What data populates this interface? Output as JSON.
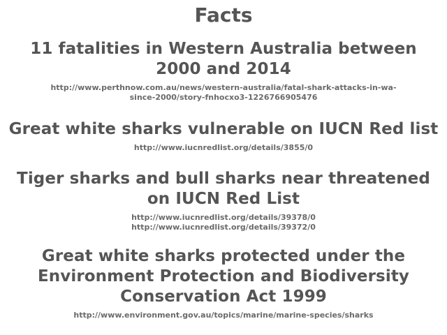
{
  "title": "Facts",
  "facts": [
    {
      "text_lines": [
        "11 fatalities in Western Australia between",
        "2000 and 2014"
      ],
      "sources": [
        "http://www.perthnow.com.au/news/western-australia/fatal-shark-attacks-in-wa-",
        "since-2000/story-fnhocxo3-1226766905476"
      ]
    },
    {
      "text_lines": [
        "Great white sharks vulnerable on IUCN Red list"
      ],
      "sources": [
        "http://www.iucnredlist.org/details/3855/0"
      ]
    },
    {
      "text_lines": [
        "Tiger sharks and bull sharks near threatened",
        "on IUCN Red List"
      ],
      "sources": [
        "http://www.iucnredlist.org/details/39378/0",
        "http://www.iucnredlist.org/details/39372/0"
      ]
    },
    {
      "text_lines": [
        "Great white sharks protected under the",
        "Environment Protection and Biodiversity",
        "Conservation Act 1999"
      ],
      "sources": [
        "http://www.environment.gov.au/topics/marine/marine-species/sharks"
      ]
    }
  ]
}
